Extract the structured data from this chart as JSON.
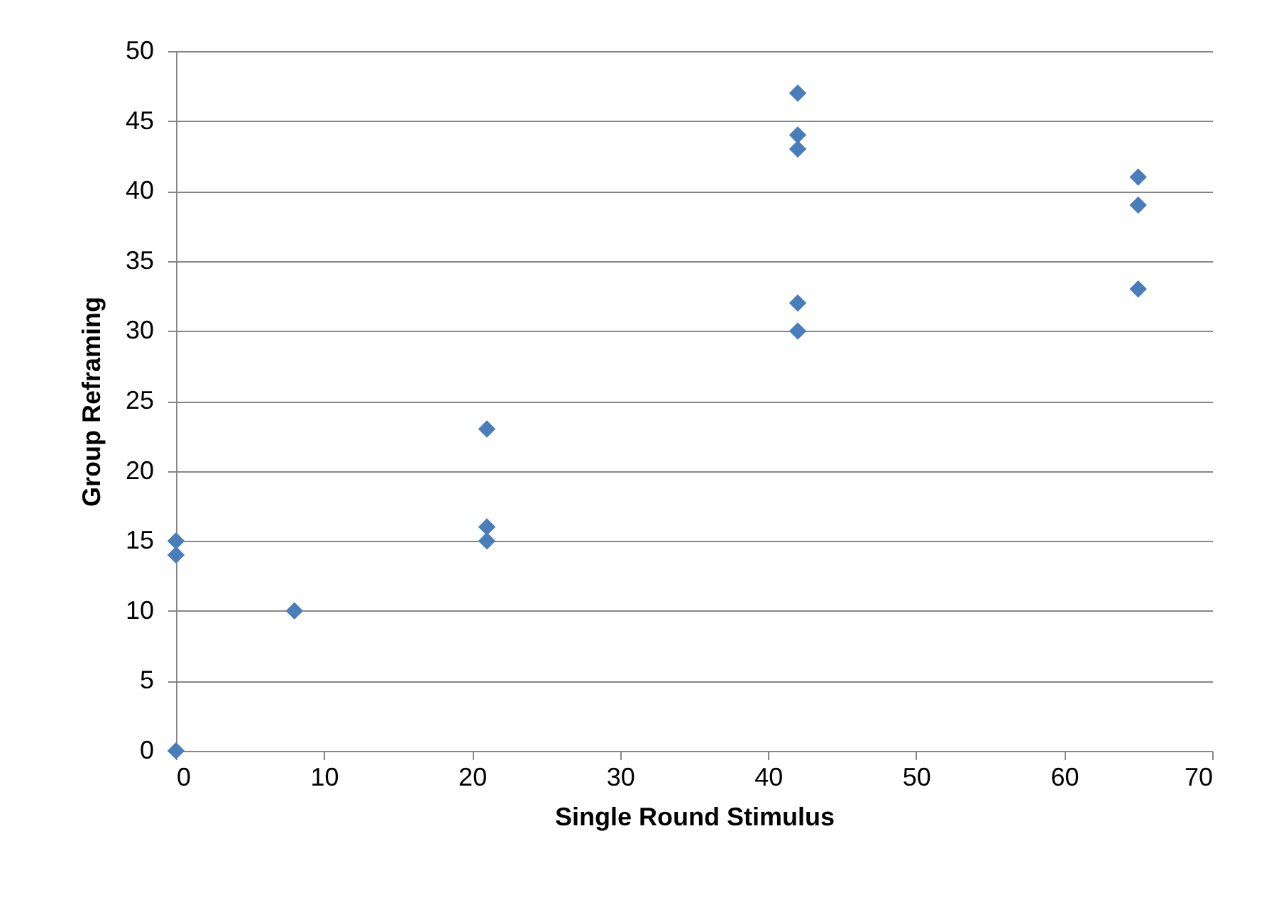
{
  "chart_data": {
    "type": "scatter",
    "xlabel": "Single Round Stimulus",
    "ylabel": "Group Reframing",
    "x": [
      0,
      0,
      0,
      8,
      21,
      21,
      21,
      42,
      42,
      42,
      42,
      42,
      65,
      65,
      65
    ],
    "series": [
      {
        "color": "#4a7ebb",
        "values": [
          15,
          14,
          0,
          10,
          23,
          16,
          15,
          47,
          44,
          43,
          32,
          30,
          41,
          39,
          33
        ]
      }
    ],
    "xlim": [
      0,
      70
    ],
    "xticks": [
      0,
      10,
      20,
      30,
      40,
      50,
      60,
      70
    ],
    "ylim": [
      0,
      50
    ],
    "yticks": [
      0,
      5,
      10,
      15,
      20,
      25,
      30,
      35,
      40,
      45,
      50
    ],
    "grid": "y",
    "marker": "diamond",
    "legend": false
  }
}
